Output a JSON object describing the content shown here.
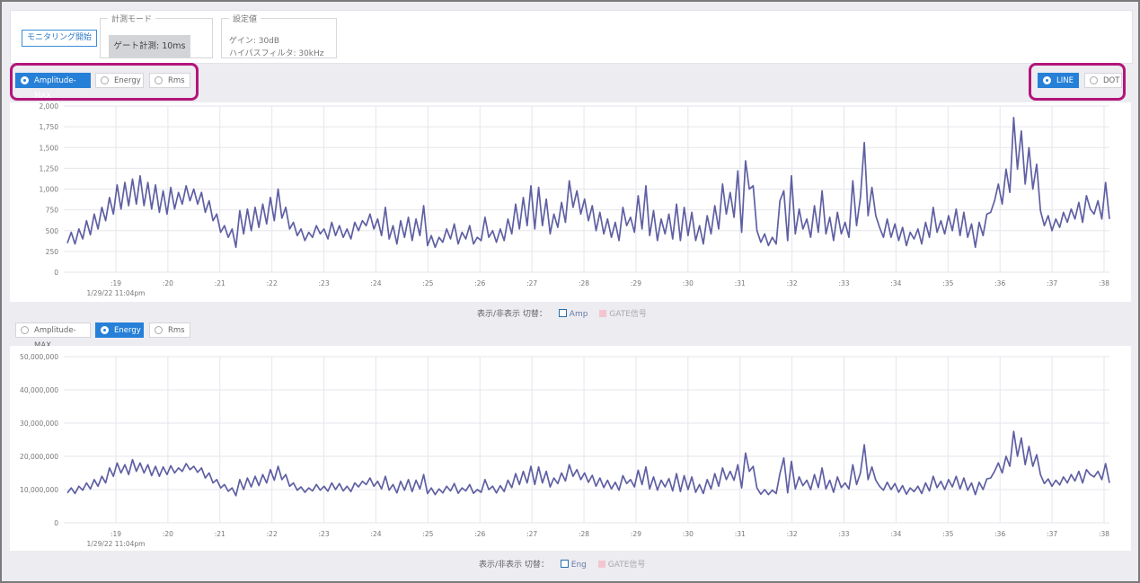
{
  "controls": {
    "monitor_button": "モニタリング開始",
    "mode_legend": "計測モード",
    "mode_value": "ゲート計測: 10ms",
    "settings_legend": "設定値",
    "gain": "ゲイン: 30dB",
    "highpass": "ハイパスフィルタ: 30kHz"
  },
  "chart1_toolbar": {
    "options": [
      "Amplitude-MAX",
      "Energy",
      "Rms"
    ],
    "selected": "Amplitude-MAX",
    "style_options": [
      "LINE",
      "DOT"
    ],
    "style_selected": "LINE"
  },
  "chart2_toolbar": {
    "options": [
      "Amplitude-MAX",
      "Energy",
      "Rms"
    ],
    "selected": "Energy"
  },
  "legend1": {
    "prefix": "表示/非表示 切替：",
    "series": "Amp",
    "gate": "GATE信号"
  },
  "legend2": {
    "prefix": "表示/非表示 切替：",
    "series": "Eng",
    "gate": "GATE信号"
  },
  "colors": {
    "line": "#5f5fa3",
    "accent": "#2680d8",
    "highlight": "#b3157a",
    "gate": "#f3c6cf"
  },
  "chart_data": [
    {
      "type": "line",
      "x_tick_labels": [
        ":19",
        ":20",
        ":21",
        ":22",
        ":23",
        ":24",
        ":25",
        ":26",
        ":27",
        ":28",
        ":29",
        ":30",
        ":31",
        ":32",
        ":33",
        ":34",
        ":35",
        ":36",
        ":37",
        ":38"
      ],
      "x_sublabel": "1/29/22 11:04pm",
      "y_ticks": [
        "0",
        "250",
        "500",
        "750",
        "1,000",
        "1,250",
        "1,500",
        "1,750",
        "2,000"
      ],
      "ylim": [
        0,
        2000
      ],
      "series": [
        {
          "name": "Amp",
          "values": [
            350,
            480,
            340,
            520,
            400,
            620,
            450,
            700,
            520,
            780,
            620,
            900,
            700,
            1050,
            760,
            1080,
            800,
            1120,
            820,
            1160,
            800,
            1080,
            760,
            1050,
            720,
            980,
            700,
            1020,
            760,
            960,
            820,
            1040,
            860,
            1000,
            820,
            960,
            720,
            860,
            620,
            700,
            480,
            560,
            420,
            520,
            300,
            740,
            460,
            760,
            500,
            780,
            540,
            820,
            580,
            900,
            620,
            1000,
            650,
            780,
            520,
            600,
            440,
            520,
            380,
            480,
            420,
            560,
            460,
            520,
            400,
            600,
            440,
            560,
            420,
            520,
            400,
            600,
            500,
            620,
            560,
            700,
            520,
            640,
            440,
            780,
            400,
            560,
            340,
            620,
            420,
            660,
            380,
            640,
            440,
            800,
            320,
            440,
            300,
            420,
            360,
            520,
            400,
            580,
            340,
            480,
            400,
            560,
            340,
            420,
            380,
            660,
            420,
            500,
            360,
            520,
            380,
            640,
            460,
            820,
            520,
            900,
            560,
            1040,
            520,
            1020,
            560,
            880,
            460,
            700,
            540,
            840,
            600,
            1100,
            780,
            980,
            700,
            880,
            620,
            800,
            500,
            720,
            460,
            640,
            420,
            600,
            380,
            780,
            560,
            660,
            480,
            920,
            520,
            1040,
            440,
            740,
            380,
            640,
            460,
            700,
            400,
            820,
            380,
            780,
            440,
            720,
            380,
            560,
            340,
            680,
            460,
            800,
            520,
            1060,
            700,
            960,
            660,
            1220,
            480,
            1340,
            1000,
            1040,
            500,
            360,
            460,
            320,
            420,
            340,
            860,
            980,
            380,
            1160,
            460,
            760,
            520,
            640,
            420,
            800,
            480,
            980,
            460,
            660,
            380,
            720,
            460,
            600,
            420,
            1100,
            560,
            900,
            1560,
            680,
            1020,
            680,
            540,
            420,
            640,
            420,
            580,
            380,
            540,
            320,
            480,
            400,
            520,
            340,
            600,
            420,
            780,
            480,
            620,
            460,
            680,
            500,
            760,
            440,
            720,
            420,
            580,
            300,
            600,
            440,
            700,
            720,
            860,
            1060,
            820,
            1240,
            960,
            1860,
            1240,
            1700,
            1060,
            1500,
            1000,
            1300,
            740,
            560,
            680,
            500,
            640,
            540,
            720,
            600,
            760,
            640,
            840,
            600,
            920,
            760,
            700,
            860,
            640,
            1080,
            640
          ]
        }
      ]
    },
    {
      "type": "line",
      "x_tick_labels": [
        ":19",
        ":20",
        ":21",
        ":22",
        ":23",
        ":24",
        ":25",
        ":26",
        ":27",
        ":28",
        ":29",
        ":30",
        ":31",
        ":32",
        ":33",
        ":34",
        ":35",
        ":36",
        ":37",
        ":38"
      ],
      "x_sublabel": "1/29/22 11:04pm",
      "y_ticks": [
        "0",
        "10,000,000",
        "20,000,000",
        "30,000,000",
        "40,000,000",
        "50,000,000"
      ],
      "ylim": [
        0,
        50000000
      ],
      "series": [
        {
          "name": "Eng",
          "values": [
            9000000,
            10500000,
            8800000,
            11000000,
            9800000,
            12000000,
            10200000,
            13000000,
            11000000,
            14000000,
            12000000,
            16500000,
            14000000,
            18000000,
            15000000,
            17500000,
            14500000,
            19000000,
            15500000,
            18000000,
            15000000,
            17500000,
            14200000,
            17000000,
            14000000,
            16800000,
            14500000,
            17200000,
            15000000,
            16500000,
            15500000,
            17800000,
            16000000,
            17000000,
            15200000,
            16500000,
            13500000,
            15000000,
            12000000,
            13000000,
            10500000,
            11500000,
            9500000,
            10500000,
            8200000,
            13000000,
            10000000,
            13500000,
            10800000,
            14000000,
            11200000,
            14500000,
            12000000,
            16000000,
            12800000,
            17000000,
            13000000,
            14500000,
            11000000,
            12000000,
            9800000,
            10800000,
            9200000,
            10500000,
            9600000,
            11500000,
            9800000,
            11000000,
            9500000,
            12000000,
            10000000,
            11800000,
            9600000,
            11000000,
            9400000,
            12000000,
            10800000,
            12500000,
            11500000,
            13500000,
            11000000,
            12500000,
            10200000,
            14000000,
            9800000,
            11500000,
            9000000,
            12500000,
            9800000,
            13000000,
            9400000,
            12800000,
            10200000,
            14500000,
            8800000,
            10500000,
            8500000,
            10200000,
            9000000,
            11000000,
            9600000,
            11800000,
            8900000,
            10500000,
            9600000,
            11500000,
            8900000,
            10000000,
            9200000,
            13000000,
            10000000,
            11000000,
            9000000,
            11200000,
            9400000,
            12800000,
            10600000,
            14800000,
            11500000,
            15500000,
            12000000,
            17000000,
            11500000,
            16800000,
            12000000,
            15500000,
            10800000,
            13500000,
            11800000,
            15000000,
            12600000,
            17500000,
            14000000,
            16000000,
            13000000,
            15000000,
            12200000,
            14300000,
            11000000,
            13500000,
            10600000,
            12800000,
            10200000,
            12200000,
            9800000,
            14200000,
            11800000,
            13000000,
            10800000,
            15800000,
            11500000,
            16800000,
            10200000,
            13800000,
            9800000,
            12800000,
            10800000,
            13300000,
            9600000,
            14800000,
            9400000,
            14200000,
            10000000,
            13800000,
            9200000,
            11500000,
            8800000,
            13000000,
            10200000,
            14800000,
            11000000,
            16500000,
            13000000,
            15500000,
            12800000,
            17500000,
            10500000,
            21000000,
            15500000,
            17000000,
            10500000,
            8600000,
            10000000,
            8500000,
            9800000,
            8800000,
            14800000,
            19500000,
            9000000,
            18500000,
            10200000,
            13800000,
            11200000,
            12800000,
            10000000,
            14500000,
            10600000,
            16500000,
            10200000,
            12800000,
            9200000,
            13800000,
            10600000,
            12000000,
            10200000,
            17500000,
            11500000,
            15000000,
            23500000,
            13000000,
            16800000,
            12800000,
            11000000,
            9800000,
            12200000,
            10000000,
            11800000,
            9200000,
            11200000,
            8600000,
            10500000,
            9400000,
            11000000,
            8800000,
            12000000,
            9600000,
            14000000,
            10600000,
            12500000,
            10000000,
            13000000,
            10800000,
            14000000,
            10200000,
            13500000,
            9800000,
            12000000,
            8500000,
            12200000,
            10000000,
            13200000,
            13500000,
            15500000,
            18000000,
            15000000,
            20000000,
            17000000,
            27500000,
            20000000,
            25500000,
            17500000,
            23000000,
            17000000,
            20500000,
            14500000,
            11800000,
            13200000,
            11000000,
            12800000,
            11400000,
            13800000,
            12000000,
            14500000,
            12600000,
            15500000,
            12000000,
            16000000,
            14500000,
            13800000,
            15500000,
            13000000,
            17800000,
            12000000
          ]
        }
      ]
    }
  ]
}
